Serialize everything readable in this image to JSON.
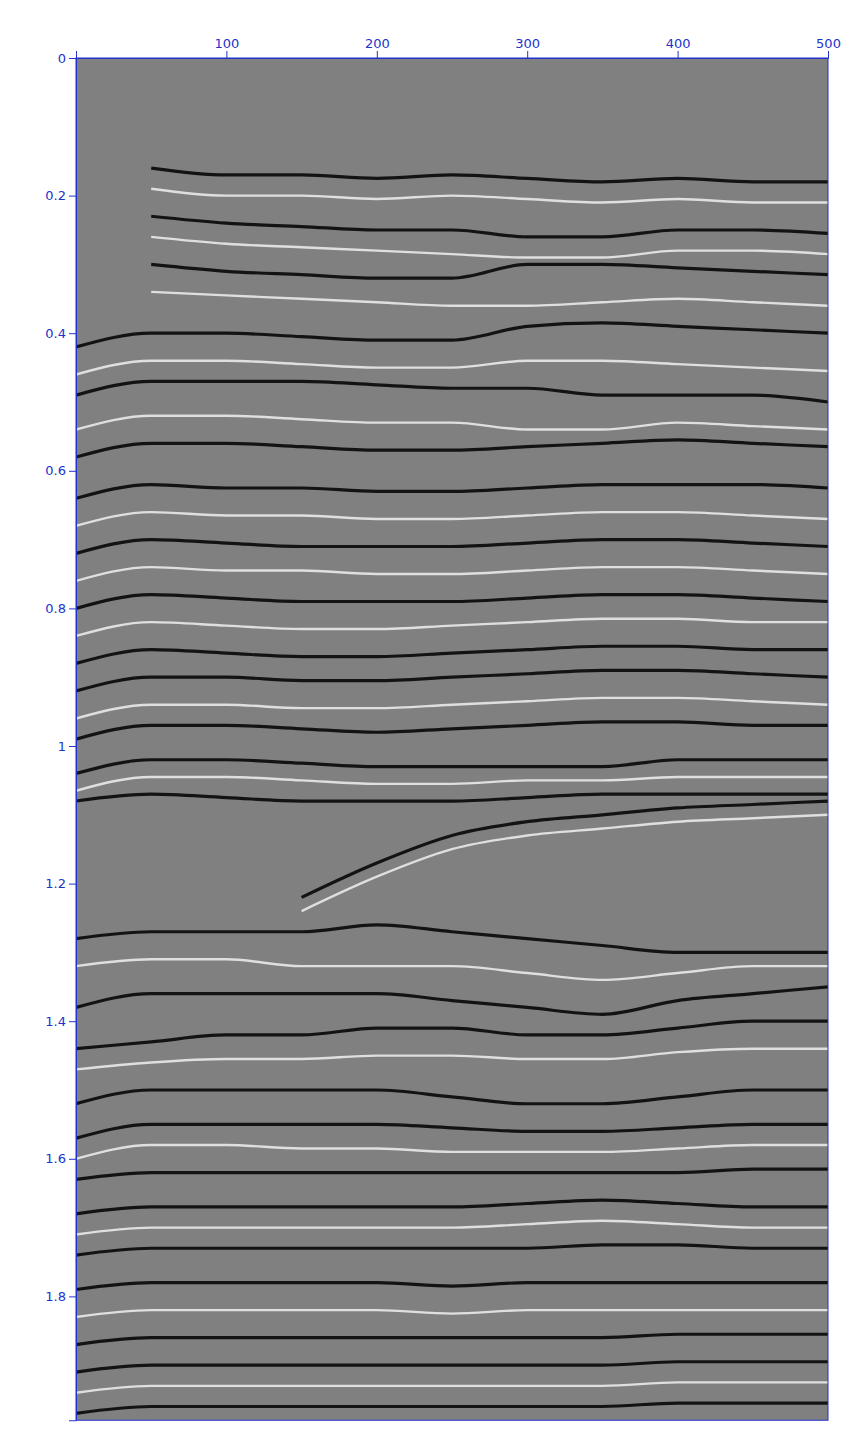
{
  "chart_data": {
    "type": "line",
    "x": [
      0,
      50,
      100,
      150,
      200,
      250,
      300,
      350,
      400,
      450,
      500
    ],
    "xlim": [
      0,
      500
    ],
    "xticks": [
      100,
      200,
      300,
      400,
      500
    ],
    "ylim": [
      0,
      1.98
    ],
    "yticks": [
      0,
      0.2,
      0.4,
      0.6,
      0.8,
      1,
      1.2,
      1.4,
      1.6,
      1.8
    ],
    "grid": false,
    "series": [
      {
        "color": "#000000",
        "values": [
          null,
          0.16,
          0.17,
          0.17,
          0.175,
          0.17,
          0.175,
          0.18,
          0.175,
          0.18,
          0.18
        ]
      },
      {
        "color": "#ffffff",
        "values": [
          null,
          0.19,
          0.2,
          0.2,
          0.205,
          0.2,
          0.205,
          0.21,
          0.205,
          0.21,
          0.21
        ]
      },
      {
        "color": "#000000",
        "values": [
          null,
          0.23,
          0.24,
          0.245,
          0.25,
          0.25,
          0.26,
          0.26,
          0.25,
          0.25,
          0.255
        ]
      },
      {
        "color": "#ffffff",
        "values": [
          null,
          0.26,
          0.27,
          0.275,
          0.28,
          0.285,
          0.29,
          0.29,
          0.28,
          0.28,
          0.285
        ]
      },
      {
        "color": "#000000",
        "values": [
          null,
          0.3,
          0.31,
          0.315,
          0.32,
          0.32,
          0.3,
          0.3,
          0.305,
          0.31,
          0.315
        ]
      },
      {
        "color": "#ffffff",
        "values": [
          null,
          0.34,
          0.345,
          0.35,
          0.355,
          0.36,
          0.36,
          0.355,
          0.35,
          0.355,
          0.36
        ]
      },
      {
        "color": "#000000",
        "values": [
          0.42,
          0.4,
          0.4,
          0.405,
          0.41,
          0.41,
          0.39,
          0.385,
          0.39,
          0.395,
          0.4
        ]
      },
      {
        "color": "#ffffff",
        "values": [
          0.46,
          0.44,
          0.44,
          0.445,
          0.45,
          0.45,
          0.44,
          0.44,
          0.445,
          0.45,
          0.455
        ]
      },
      {
        "color": "#000000",
        "values": [
          0.49,
          0.47,
          0.47,
          0.47,
          0.475,
          0.48,
          0.48,
          0.49,
          0.49,
          0.49,
          0.5
        ]
      },
      {
        "color": "#ffffff",
        "values": [
          0.54,
          0.52,
          0.52,
          0.525,
          0.53,
          0.53,
          0.54,
          0.54,
          0.53,
          0.535,
          0.54
        ]
      },
      {
        "color": "#000000",
        "values": [
          0.58,
          0.56,
          0.56,
          0.565,
          0.57,
          0.57,
          0.565,
          0.56,
          0.555,
          0.56,
          0.565
        ]
      },
      {
        "color": "#000000",
        "values": [
          0.64,
          0.62,
          0.625,
          0.625,
          0.63,
          0.63,
          0.625,
          0.62,
          0.62,
          0.62,
          0.625
        ]
      },
      {
        "color": "#ffffff",
        "values": [
          0.68,
          0.66,
          0.665,
          0.665,
          0.67,
          0.67,
          0.665,
          0.66,
          0.66,
          0.665,
          0.67
        ]
      },
      {
        "color": "#000000",
        "values": [
          0.72,
          0.7,
          0.705,
          0.71,
          0.71,
          0.71,
          0.705,
          0.7,
          0.7,
          0.705,
          0.71
        ]
      },
      {
        "color": "#ffffff",
        "values": [
          0.76,
          0.74,
          0.745,
          0.745,
          0.75,
          0.75,
          0.745,
          0.74,
          0.74,
          0.745,
          0.75
        ]
      },
      {
        "color": "#000000",
        "values": [
          0.8,
          0.78,
          0.785,
          0.79,
          0.79,
          0.79,
          0.785,
          0.78,
          0.78,
          0.785,
          0.79
        ]
      },
      {
        "color": "#ffffff",
        "values": [
          0.84,
          0.82,
          0.825,
          0.83,
          0.83,
          0.825,
          0.82,
          0.815,
          0.815,
          0.82,
          0.82
        ]
      },
      {
        "color": "#000000",
        "values": [
          0.88,
          0.86,
          0.865,
          0.87,
          0.87,
          0.865,
          0.86,
          0.855,
          0.855,
          0.86,
          0.86
        ]
      },
      {
        "color": "#000000",
        "values": [
          0.92,
          0.9,
          0.9,
          0.905,
          0.905,
          0.9,
          0.895,
          0.89,
          0.89,
          0.895,
          0.9
        ]
      },
      {
        "color": "#ffffff",
        "values": [
          0.96,
          0.94,
          0.94,
          0.945,
          0.945,
          0.94,
          0.935,
          0.93,
          0.93,
          0.935,
          0.94
        ]
      },
      {
        "color": "#000000",
        "values": [
          0.99,
          0.97,
          0.97,
          0.975,
          0.98,
          0.975,
          0.97,
          0.965,
          0.965,
          0.97,
          0.97
        ]
      },
      {
        "color": "#000000",
        "values": [
          1.04,
          1.02,
          1.02,
          1.025,
          1.03,
          1.03,
          1.03,
          1.03,
          1.02,
          1.02,
          1.02
        ]
      },
      {
        "color": "#ffffff",
        "values": [
          1.065,
          1.045,
          1.045,
          1.05,
          1.055,
          1.055,
          1.05,
          1.05,
          1.045,
          1.045,
          1.045
        ]
      },
      {
        "color": "#000000",
        "values": [
          1.08,
          1.07,
          1.075,
          1.08,
          1.08,
          1.08,
          1.075,
          1.07,
          1.07,
          1.07,
          1.07
        ]
      },
      {
        "color": "#000000",
        "values": [
          null,
          null,
          null,
          1.22,
          1.17,
          1.13,
          1.11,
          1.1,
          1.09,
          1.085,
          1.08
        ]
      },
      {
        "color": "#ffffff",
        "values": [
          null,
          null,
          null,
          1.24,
          1.19,
          1.15,
          1.13,
          1.12,
          1.11,
          1.105,
          1.1
        ]
      },
      {
        "color": "#000000",
        "values": [
          1.28,
          1.27,
          1.27,
          1.27,
          1.26,
          1.27,
          1.28,
          1.29,
          1.3,
          1.3,
          1.3
        ]
      },
      {
        "color": "#ffffff",
        "values": [
          1.32,
          1.31,
          1.31,
          1.32,
          1.32,
          1.32,
          1.33,
          1.34,
          1.33,
          1.32,
          1.32
        ]
      },
      {
        "color": "#000000",
        "values": [
          1.38,
          1.36,
          1.36,
          1.36,
          1.36,
          1.37,
          1.38,
          1.39,
          1.37,
          1.36,
          1.35
        ]
      },
      {
        "color": "#000000",
        "values": [
          1.44,
          1.43,
          1.42,
          1.42,
          1.41,
          1.41,
          1.42,
          1.42,
          1.41,
          1.4,
          1.4
        ]
      },
      {
        "color": "#ffffff",
        "values": [
          1.47,
          1.46,
          1.455,
          1.455,
          1.45,
          1.45,
          1.455,
          1.455,
          1.445,
          1.44,
          1.44
        ]
      },
      {
        "color": "#000000",
        "values": [
          1.52,
          1.5,
          1.5,
          1.5,
          1.5,
          1.51,
          1.52,
          1.52,
          1.51,
          1.5,
          1.5
        ]
      },
      {
        "color": "#000000",
        "values": [
          1.57,
          1.55,
          1.55,
          1.55,
          1.55,
          1.555,
          1.56,
          1.56,
          1.555,
          1.55,
          1.55
        ]
      },
      {
        "color": "#ffffff",
        "values": [
          1.6,
          1.58,
          1.58,
          1.585,
          1.585,
          1.59,
          1.59,
          1.59,
          1.585,
          1.58,
          1.58
        ]
      },
      {
        "color": "#000000",
        "values": [
          1.63,
          1.62,
          1.62,
          1.62,
          1.62,
          1.62,
          1.62,
          1.62,
          1.62,
          1.615,
          1.615
        ]
      },
      {
        "color": "#000000",
        "values": [
          1.68,
          1.67,
          1.67,
          1.67,
          1.67,
          1.67,
          1.665,
          1.66,
          1.665,
          1.67,
          1.67
        ]
      },
      {
        "color": "#ffffff",
        "values": [
          1.71,
          1.7,
          1.7,
          1.7,
          1.7,
          1.7,
          1.695,
          1.69,
          1.695,
          1.7,
          1.7
        ]
      },
      {
        "color": "#000000",
        "values": [
          1.74,
          1.73,
          1.73,
          1.73,
          1.73,
          1.73,
          1.73,
          1.725,
          1.725,
          1.73,
          1.73
        ]
      },
      {
        "color": "#000000",
        "values": [
          1.79,
          1.78,
          1.78,
          1.78,
          1.78,
          1.785,
          1.78,
          1.78,
          1.78,
          1.78,
          1.78
        ]
      },
      {
        "color": "#ffffff",
        "values": [
          1.83,
          1.82,
          1.82,
          1.82,
          1.82,
          1.825,
          1.82,
          1.82,
          1.82,
          1.82,
          1.82
        ]
      },
      {
        "color": "#000000",
        "values": [
          1.87,
          1.86,
          1.86,
          1.86,
          1.86,
          1.86,
          1.86,
          1.86,
          1.855,
          1.855,
          1.855
        ]
      },
      {
        "color": "#000000",
        "values": [
          1.91,
          1.9,
          1.9,
          1.9,
          1.9,
          1.9,
          1.9,
          1.9,
          1.895,
          1.895,
          1.895
        ]
      },
      {
        "color": "#ffffff",
        "values": [
          1.94,
          1.93,
          1.93,
          1.93,
          1.93,
          1.93,
          1.93,
          1.93,
          1.925,
          1.925,
          1.925
        ]
      },
      {
        "color": "#000000",
        "values": [
          1.97,
          1.96,
          1.96,
          1.96,
          1.96,
          1.96,
          1.96,
          1.96,
          1.955,
          1.955,
          1.955
        ]
      }
    ]
  }
}
